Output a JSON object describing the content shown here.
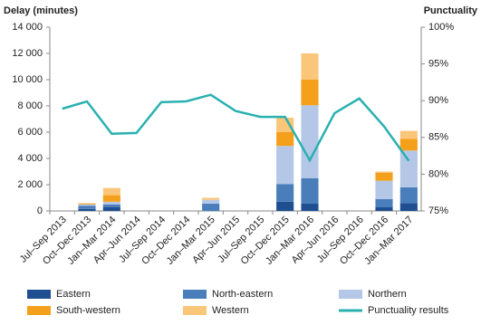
{
  "chart_data": {
    "type": "bar",
    "stacked": true,
    "y_label": "Delay (minutes)",
    "y2_label": "Punctuality",
    "categories": [
      "Jul–Sep 2013",
      "Oct–Dec 2013",
      "Jan–Mar 2014",
      "Apr–Jun 2014",
      "Jul–Sep 2014",
      "Oct–Dec 2014",
      "Jan–Mar 2015",
      "Apr–Jun 2015",
      "Jul–Sep 2015",
      "Oct–Dec 2015",
      "Jan–Mar 2016",
      "Apr–Jun 2016",
      "Jul–Sep 2016",
      "Oct–Dec 2016",
      "Jan–Mar 2017"
    ],
    "series": [
      {
        "name": "Eastern",
        "color": "#1f4e91",
        "values": [
          0,
          150,
          300,
          0,
          0,
          0,
          0,
          0,
          0,
          700,
          550,
          0,
          0,
          300,
          600
        ]
      },
      {
        "name": "North-eastern",
        "color": "#4a7ebb",
        "values": [
          0,
          250,
          200,
          0,
          0,
          0,
          550,
          0,
          0,
          1350,
          1950,
          0,
          0,
          600,
          1200
        ]
      },
      {
        "name": "Northern",
        "color": "#b4c7e7",
        "values": [
          0,
          100,
          200,
          0,
          0,
          0,
          300,
          0,
          0,
          2900,
          5550,
          0,
          0,
          1400,
          2800
        ]
      },
      {
        "name": "South-western",
        "color": "#f5a01a",
        "values": [
          0,
          50,
          500,
          0,
          0,
          0,
          0,
          0,
          0,
          1050,
          1950,
          0,
          0,
          600,
          900
        ]
      },
      {
        "name": "Western",
        "color": "#fac67a",
        "values": [
          0,
          50,
          550,
          0,
          0,
          0,
          150,
          0,
          0,
          1100,
          2000,
          0,
          0,
          100,
          600
        ]
      },
      {
        "name": "Punctuality results",
        "color": "#2ab0b0",
        "type": "line",
        "axis": "y2",
        "values": [
          88.9,
          89.9,
          85.5,
          85.6,
          89.8,
          89.9,
          90.8,
          88.6,
          87.8,
          87.8,
          81.9,
          88.3,
          90.3,
          86.5,
          81.8
        ]
      }
    ],
    "ylim": [
      0,
      14000
    ],
    "yticks": [
      0,
      {
        "value": 2000,
        "label": "2 000"
      },
      {
        "value": 4000,
        "label": "4 000"
      },
      {
        "value": 6000,
        "label": "6 000"
      },
      {
        "value": 8000,
        "label": "8 000"
      },
      {
        "value": 10000,
        "label": "10 000"
      },
      {
        "value": 12000,
        "label": "12 000"
      },
      {
        "value": 14000,
        "label": "14 000"
      }
    ],
    "y2lim": [
      75,
      100
    ],
    "y2ticks": [
      {
        "value": 75,
        "label": "75%"
      },
      {
        "value": 80,
        "label": "80%"
      },
      {
        "value": 85,
        "label": "85%"
      },
      {
        "value": 90,
        "label": "90%"
      },
      {
        "value": 95,
        "label": "95%"
      },
      {
        "value": 100,
        "label": "100%"
      }
    ],
    "legend": "bottom"
  }
}
